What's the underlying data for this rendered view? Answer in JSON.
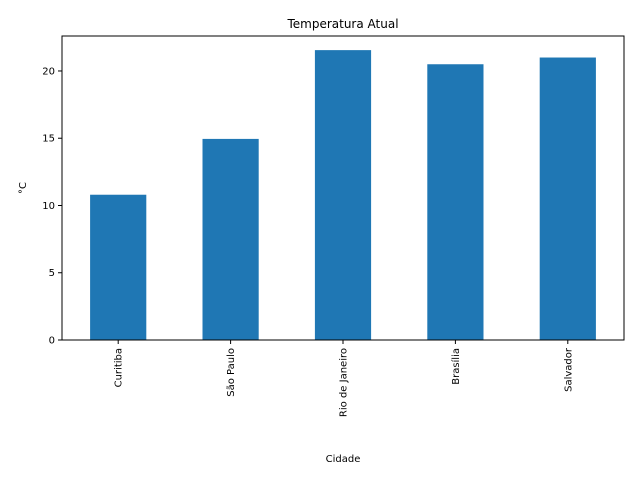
{
  "chart_data": {
    "type": "bar",
    "title": "Temperatura Atual",
    "xlabel": "Cidade",
    "ylabel": "°C",
    "categories": [
      "Curitiba",
      "São Paulo",
      "Rio de Janeiro",
      "Brasília",
      "Salvador"
    ],
    "values": [
      10.8,
      14.95,
      21.55,
      20.5,
      21.0
    ],
    "ylim": [
      0,
      22.6
    ],
    "yticks": [
      0,
      5,
      10,
      15,
      20
    ],
    "color": "#1f77b4",
    "grid": false,
    "legend": false
  }
}
